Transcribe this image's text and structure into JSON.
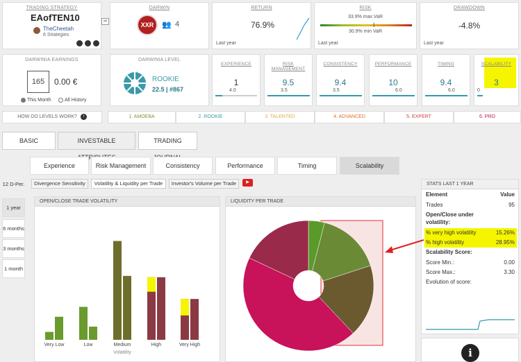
{
  "top": {
    "strategy": {
      "title": "TRADING STRATEGY",
      "name": "EAofTEN10",
      "user": "TheCheetah",
      "count": "6 Strategies"
    },
    "darwin": {
      "title": "DARWIN",
      "code": "XXR",
      "people": "4"
    },
    "return": {
      "title": "RETURN",
      "value": "76.9%",
      "period": "Last year"
    },
    "risk": {
      "title": "RISK",
      "max": "33.9% max VaR",
      "min": "30.9% min VaR",
      "period": "Last year"
    },
    "drawdown": {
      "title": "DRAWDOWN",
      "value": "-4.8%",
      "period": "Last year"
    }
  },
  "second": {
    "earnings": {
      "title": "DARWINIA EARNINGS",
      "num": "165",
      "value": "0.00 €",
      "opt1": "This Month",
      "opt2": "All History"
    },
    "level": {
      "title": "DARWINIA LEVEL",
      "name": "ROOKIE",
      "score": "22.5 | #867"
    },
    "attrs": [
      {
        "title": "EXPERIENCE",
        "value": "1",
        "sub": "4.0"
      },
      {
        "title": "RISK MANAGEMENT",
        "value": "9.5",
        "sub": "3.5"
      },
      {
        "title": "CONSISTENCY",
        "value": "9.4",
        "sub": "3.5"
      },
      {
        "title": "PERFORMANCE",
        "value": "10",
        "sub": "6.0"
      },
      {
        "title": "TIMING",
        "value": "9.4",
        "sub": "6.0"
      },
      {
        "title": "SCALABILITY",
        "value": "3",
        "sub": "0"
      }
    ]
  },
  "levels": {
    "question": "HOW DO LEVELS WORK?",
    "items": [
      "1. AMOEBA",
      "2. ROOKIE",
      "3. TALENTED",
      "4. ADVANCED",
      "5. EXPERT",
      "6. PRO"
    ]
  },
  "maintabs": [
    "BASIC",
    "INVESTABLE ATTRIBUTES",
    "TRADING JOURNAL"
  ],
  "subtabs": [
    "Experience",
    "Risk Management",
    "Consistency",
    "Performance",
    "Timing",
    "Scalability"
  ],
  "innertabs": [
    "Divergence Sensitivity",
    "Volatility & Liquidity per Trade",
    "Investor's Volume per Trade"
  ],
  "periods": [
    "12 D-Per.",
    "1 year",
    "6 months",
    "3 months",
    "1 month"
  ],
  "volatility_panel": {
    "title": "OPEN/CLOSE TRADE VOLATILITY"
  },
  "liquidity_panel": {
    "title": "LIQUIDITY PER TRADE"
  },
  "chart_data": [
    {
      "type": "bar",
      "categories": [
        "Very Low",
        "Low",
        "Medium",
        "High",
        "Very High"
      ],
      "xlabel": "Volatility",
      "series": [
        {
          "values": [
            12,
            50,
            150,
            95,
            62
          ],
          "highlight": [
            0,
            0,
            0,
            22,
            25
          ]
        },
        {
          "values": [
            35,
            20,
            97,
            95,
            62
          ],
          "highlight": [
            0,
            0,
            0,
            0,
            0
          ]
        }
      ],
      "ylim": [
        0,
        160
      ],
      "colors": {
        "left": [
          "#6b9a2e",
          "#6b9a2e",
          "#6e6e2c",
          "#8b3a44",
          "#8b3a44"
        ],
        "right": [
          "#6b9a2e",
          "#6b9a2e",
          "#6e6e2c",
          "#8b3a44",
          "#8b3a44"
        ]
      }
    },
    {
      "type": "pie",
      "slices": [
        {
          "value": 4,
          "color": "#5a9a2a"
        },
        {
          "value": 16,
          "color": "#6b8a35"
        },
        {
          "value": 18,
          "color": "#6b5a30"
        },
        {
          "value": 44,
          "color": "#c8125a"
        },
        {
          "value": 18,
          "color": "#9a2a4a"
        }
      ]
    }
  ],
  "stats": {
    "title": "STATS LAST 1 YEAR",
    "head_k": "Element",
    "head_v": "Value",
    "trades_k": "Trades",
    "trades_v": "95",
    "oc_label": "Open/Close under volatility:",
    "vhv_k": "% very high volatility",
    "vhv_v": "15.26%",
    "hv_k": "% high volatility",
    "hv_v": "28.95%",
    "score_label": "Scalability Score:",
    "min_k": "Score Min.:",
    "min_v": "0.00",
    "max_k": "Score Max.:",
    "max_v": "3.30",
    "evo": "Evolution of score:"
  }
}
